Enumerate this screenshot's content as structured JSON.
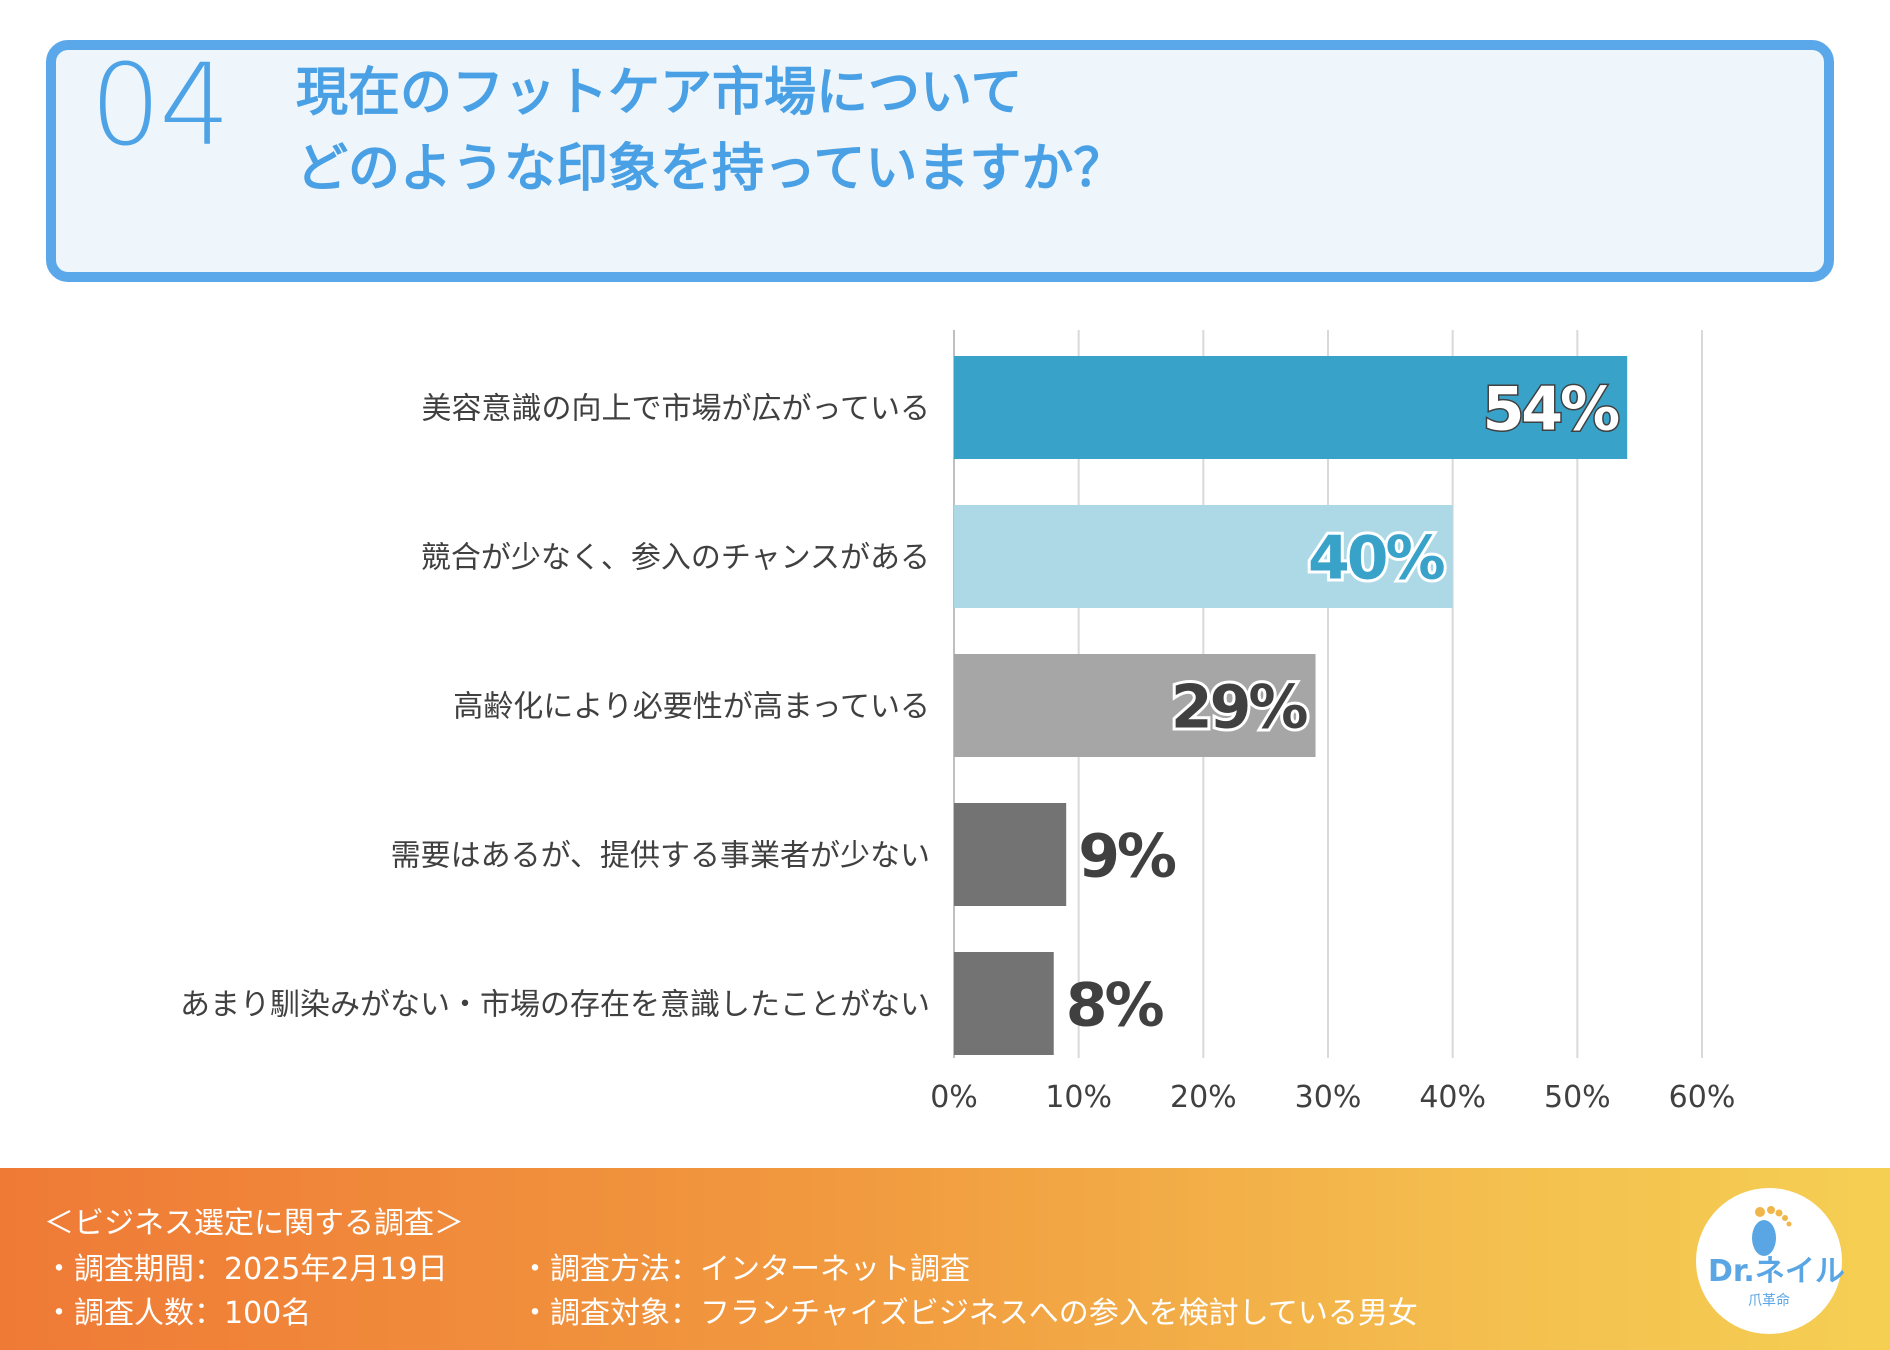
{
  "header": {
    "number": "04",
    "title_line1": "現在のフットケア市場について",
    "title_line2": "どのような印象を持っていますか？"
  },
  "chart_data": {
    "type": "bar",
    "orientation": "horizontal",
    "categories": [
      "美容意識の向上で市場が広がっている",
      "競合が少なく、参入のチャンスがある",
      "高齢化により必要性が高まっている",
      "需要はあるが、提供する事業者が少ない",
      "あまり馴染みがない・市場の存在を意識したことがない"
    ],
    "values": [
      54,
      40,
      29,
      9,
      8
    ],
    "value_labels": [
      "54%",
      "40%",
      "29%",
      "9%",
      "8%"
    ],
    "bar_colors": [
      "#39a2c8",
      "#add8e6",
      "#a6a6a6",
      "#737373",
      "#737373"
    ],
    "label_colors": [
      "#ffffff",
      "#39a2c8",
      "#404040",
      "#404040",
      "#404040"
    ],
    "xlim": [
      0,
      60
    ],
    "xticks": [
      "0%",
      "10%",
      "20%",
      "30%",
      "40%",
      "50%",
      "60%"
    ],
    "grid": true
  },
  "footer": {
    "title": "＜ビジネス選定に関する調査＞",
    "period": "・調査期間：2025年2月19日",
    "method": "・調査方法：インターネット調査",
    "count": "・調査人数：100名",
    "target": "・調査対象：フランチャイズビジネスへの参入を検討している男女"
  },
  "logo": {
    "brand": "Dr.ネイル",
    "sub": "爪革命"
  },
  "colors": {
    "accent": "#4da3e6",
    "header_bg": "#eef6fc",
    "footer_start": "#ef7a36",
    "footer_end": "#f5cf52"
  }
}
